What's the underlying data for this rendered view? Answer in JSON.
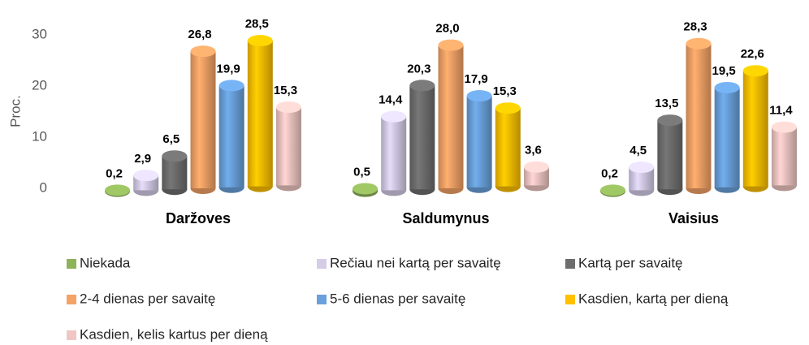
{
  "chart_data": {
    "type": "bar3d",
    "y_label": "Proc.",
    "categories": [
      "Daržoves",
      "Saldumynus",
      "Vaisius"
    ],
    "series": [
      {
        "name": "Niekada",
        "color": "#8fb35a",
        "values": [
          0.2,
          0.5,
          0.2
        ],
        "value_labels": [
          "0,2",
          "0,5",
          "0,2"
        ]
      },
      {
        "name": "Rečiau nei kartą per savaitę",
        "color": "#d5cde8",
        "values": [
          2.9,
          14.4,
          4.5
        ],
        "value_labels": [
          "2,9",
          "14,4",
          "4,5"
        ]
      },
      {
        "name": "Kartą per savaitę",
        "color": "#6e6e6e",
        "values": [
          6.5,
          20.3,
          13.5
        ],
        "value_labels": [
          "6,5",
          "20,3",
          "13,5"
        ]
      },
      {
        "name": "2-4 dienas per savaitę",
        "color": "#f4a266",
        "values": [
          26.8,
          28.0,
          28.3
        ],
        "value_labels": [
          "26,8",
          "28,0",
          "28,3"
        ]
      },
      {
        "name": "5-6 dienas per savaitę",
        "color": "#6aa1dc",
        "values": [
          19.9,
          17.9,
          19.5
        ],
        "value_labels": [
          "19,9",
          "17,9",
          "19,5"
        ]
      },
      {
        "name": "Kasdien, kartą per dieną",
        "color": "#ffc000",
        "values": [
          28.5,
          15.3,
          22.6
        ],
        "value_labels": [
          "28,5",
          "15,3",
          "22,6"
        ]
      },
      {
        "name": "Kasdien, kelis kartus per dieną",
        "color": "#efc6c3",
        "values": [
          15.3,
          3.6,
          11.4
        ],
        "value_labels": [
          "15,3",
          "3,6",
          "11,4"
        ]
      }
    ],
    "ylim": [
      0,
      30
    ],
    "yticks": [
      0,
      10,
      20,
      30
    ],
    "grid": false
  }
}
